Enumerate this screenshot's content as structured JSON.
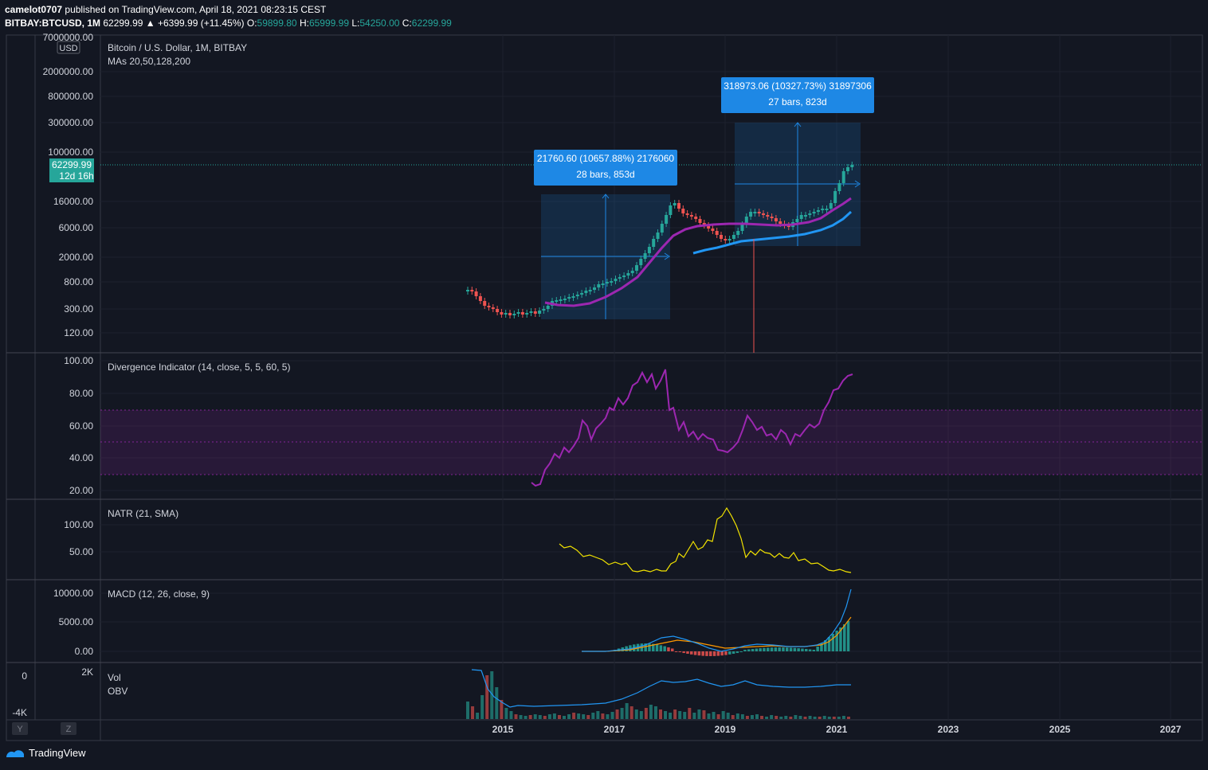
{
  "header": {
    "author": "camelot0707",
    "published": "published on TradingView.com, April 18, 2021 08:23:15 CEST",
    "symbol": "BITBAY:BTCUSD, 1M",
    "last": "62299.99",
    "change": "▲ +6399.99 (+11.45%)",
    "o_label": "O:",
    "o_value": "59899.80",
    "h_label": "H:",
    "h_value": "65999.99",
    "l_label": "L:",
    "l_value": "54250.00",
    "c_label": "C:",
    "c_value": "62299.99"
  },
  "panes": {
    "price": {
      "title": "Bitcoin / U.S. Dollar, 1M, BITBAY",
      "ma_label": "MAs 20,50,128,200",
      "currency": "USD",
      "ticks": [
        "7000000.00",
        "2000000.00",
        "800000.00",
        "300000.00",
        "100000.00",
        "16000.00",
        "6000.00",
        "2000.00",
        "800.00",
        "300.00",
        "120.00"
      ],
      "price_label": "62299.99",
      "countdown": "12d 16h",
      "measure1": {
        "line1": "21760.60 (10657.88%) 2176060",
        "line2": "28 bars, 853d"
      },
      "measure2": {
        "line1": "318973.06 (10327.73%) 31897306",
        "line2": "27 bars, 823d"
      }
    },
    "divergence": {
      "title": "Divergence Indicator (14, close, 5, 5, 60, 5)",
      "ticks": [
        "100.00",
        "80.00",
        "60.00",
        "40.00",
        "20.00"
      ]
    },
    "natr": {
      "title": "NATR (21, SMA)",
      "ticks": [
        "100.00",
        "50.00"
      ]
    },
    "macd": {
      "title": "MACD (12, 26, close, 9)",
      "ticks": [
        "10000.00",
        "5000.00",
        "0.00"
      ]
    },
    "volume": {
      "vol_label": "Vol",
      "obv_label": "OBV",
      "ticks_left": [
        "0",
        "-4K"
      ],
      "tick_right": "2K"
    }
  },
  "x_axis": {
    "ticks": [
      "2015",
      "2017",
      "2019",
      "2021",
      "2023",
      "2025",
      "2027"
    ],
    "y_button": "Y",
    "z_button": "Z"
  },
  "footer": {
    "brand": "TradingView"
  },
  "colors": {
    "background": "#131722",
    "up": "#26a69a",
    "down": "#ef5350",
    "ma_purple": "#9c27b0",
    "ma_blue": "#2196f3",
    "measure": "#1e88e5",
    "natr": "#f2e300",
    "macd_signal": "#ff9800"
  },
  "chart_data": [
    {
      "type": "candlestick",
      "title": "Bitcoin / U.S. Dollar, 1M, BITBAY",
      "scale": "log",
      "x": [
        2014.5,
        2015,
        2015.5,
        2016,
        2016.5,
        2017,
        2017.5,
        2018,
        2018.5,
        2019,
        2019.5,
        2020,
        2020.5,
        2021,
        2021.3
      ],
      "close": [
        600,
        300,
        250,
        420,
        650,
        1000,
        2500,
        13000,
        6500,
        3500,
        10000,
        7200,
        9500,
        30000,
        62299.99
      ],
      "ma_purple": [
        null,
        null,
        null,
        350,
        420,
        650,
        1300,
        3500,
        5700,
        6500,
        7000,
        7200,
        8500,
        14000,
        22000
      ],
      "ma_blue": [
        null,
        null,
        null,
        null,
        null,
        null,
        null,
        null,
        2600,
        3200,
        4000,
        5000,
        6000,
        8000,
        13000
      ]
    },
    {
      "type": "line",
      "title": "Divergence Indicator (14, close, 5, 5, 60, 5)",
      "ylim": [
        20,
        100
      ],
      "x": [
        2015.5,
        2015.75,
        2016,
        2016.5,
        2017,
        2017.25,
        2017.5,
        2017.75,
        2018,
        2018.25,
        2018.5,
        2018.75,
        2019,
        2019.25,
        2019.5,
        2019.75,
        2020,
        2020.25,
        2020.5,
        2020.75,
        2021,
        2021.25
      ],
      "values": [
        24,
        32,
        42,
        48,
        60,
        70,
        80,
        90,
        94,
        60,
        52,
        55,
        46,
        52,
        66,
        58,
        52,
        55,
        58,
        56,
        80,
        92
      ],
      "bands": [
        30,
        50,
        70
      ]
    },
    {
      "type": "line",
      "title": "NATR (21, SMA)",
      "x": [
        2016,
        2016.5,
        2017,
        2017.25,
        2017.5,
        2017.75,
        2018,
        2018.25,
        2018.5,
        2018.75,
        2019,
        2019.25,
        2019.5,
        2019.75,
        2020,
        2020.25,
        2020.5,
        2020.75,
        2021,
        2021.25
      ],
      "values": [
        65,
        55,
        40,
        32,
        20,
        22,
        20,
        24,
        42,
        65,
        125,
        90,
        45,
        52,
        44,
        45,
        38,
        30,
        22,
        20
      ]
    },
    {
      "type": "histogram+line",
      "title": "MACD (12, 26, close, 9)",
      "x": [
        2016,
        2016.5,
        2017,
        2017.5,
        2018,
        2018.5,
        2019,
        2019.5,
        2020,
        2020.5,
        2021,
        2021.3
      ],
      "macd": [
        0,
        50,
        300,
        1500,
        2200,
        1800,
        500,
        1000,
        900,
        1000,
        3500,
        10500
      ],
      "signal": [
        0,
        30,
        200,
        1000,
        2000,
        2000,
        1200,
        900,
        900,
        950,
        2500,
        7000
      ]
    },
    {
      "type": "bar+line",
      "title": "Vol / OBV",
      "series": [
        {
          "name": "Vol"
        },
        {
          "name": "OBV"
        }
      ]
    }
  ]
}
